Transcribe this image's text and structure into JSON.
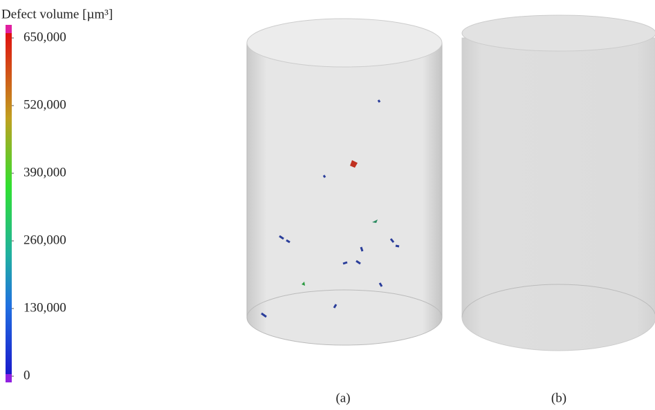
{
  "colorbar": {
    "title": "Defect volume [µm³]",
    "range": [
      0,
      650000
    ],
    "ticks": [
      0,
      {
        "value": 130000,
        "label": "130,000"
      },
      {
        "value": 260000,
        "label": "260,000"
      },
      {
        "value": 390000,
        "label": "390,000"
      },
      {
        "value": 520000,
        "label": "520,000"
      },
      {
        "value": 650000,
        "label": "650,000"
      }
    ]
  },
  "panels": [
    {
      "label": "(a)"
    },
    {
      "label": "(b)"
    }
  ]
}
